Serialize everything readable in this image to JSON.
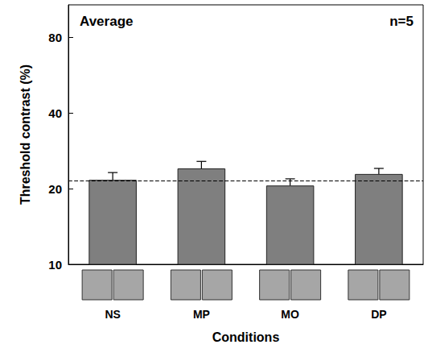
{
  "chart_data": {
    "type": "bar",
    "title": "Average",
    "annotation": "n=5",
    "x_label": "Conditions",
    "y_label": "Threshold contrast (%)",
    "categories": [
      "NS",
      "MP",
      "MO",
      "DP"
    ],
    "values": [
      21.7,
      24.1,
      20.6,
      22.9
    ],
    "errors": [
      1.5,
      1.6,
      1.3,
      1.2
    ],
    "reference_line": 21.6,
    "color": "#7f7f7f",
    "log": "y",
    "ylim": [
      10,
      108
    ],
    "yticks": [
      10,
      20,
      40,
      80
    ],
    "grid": false
  }
}
